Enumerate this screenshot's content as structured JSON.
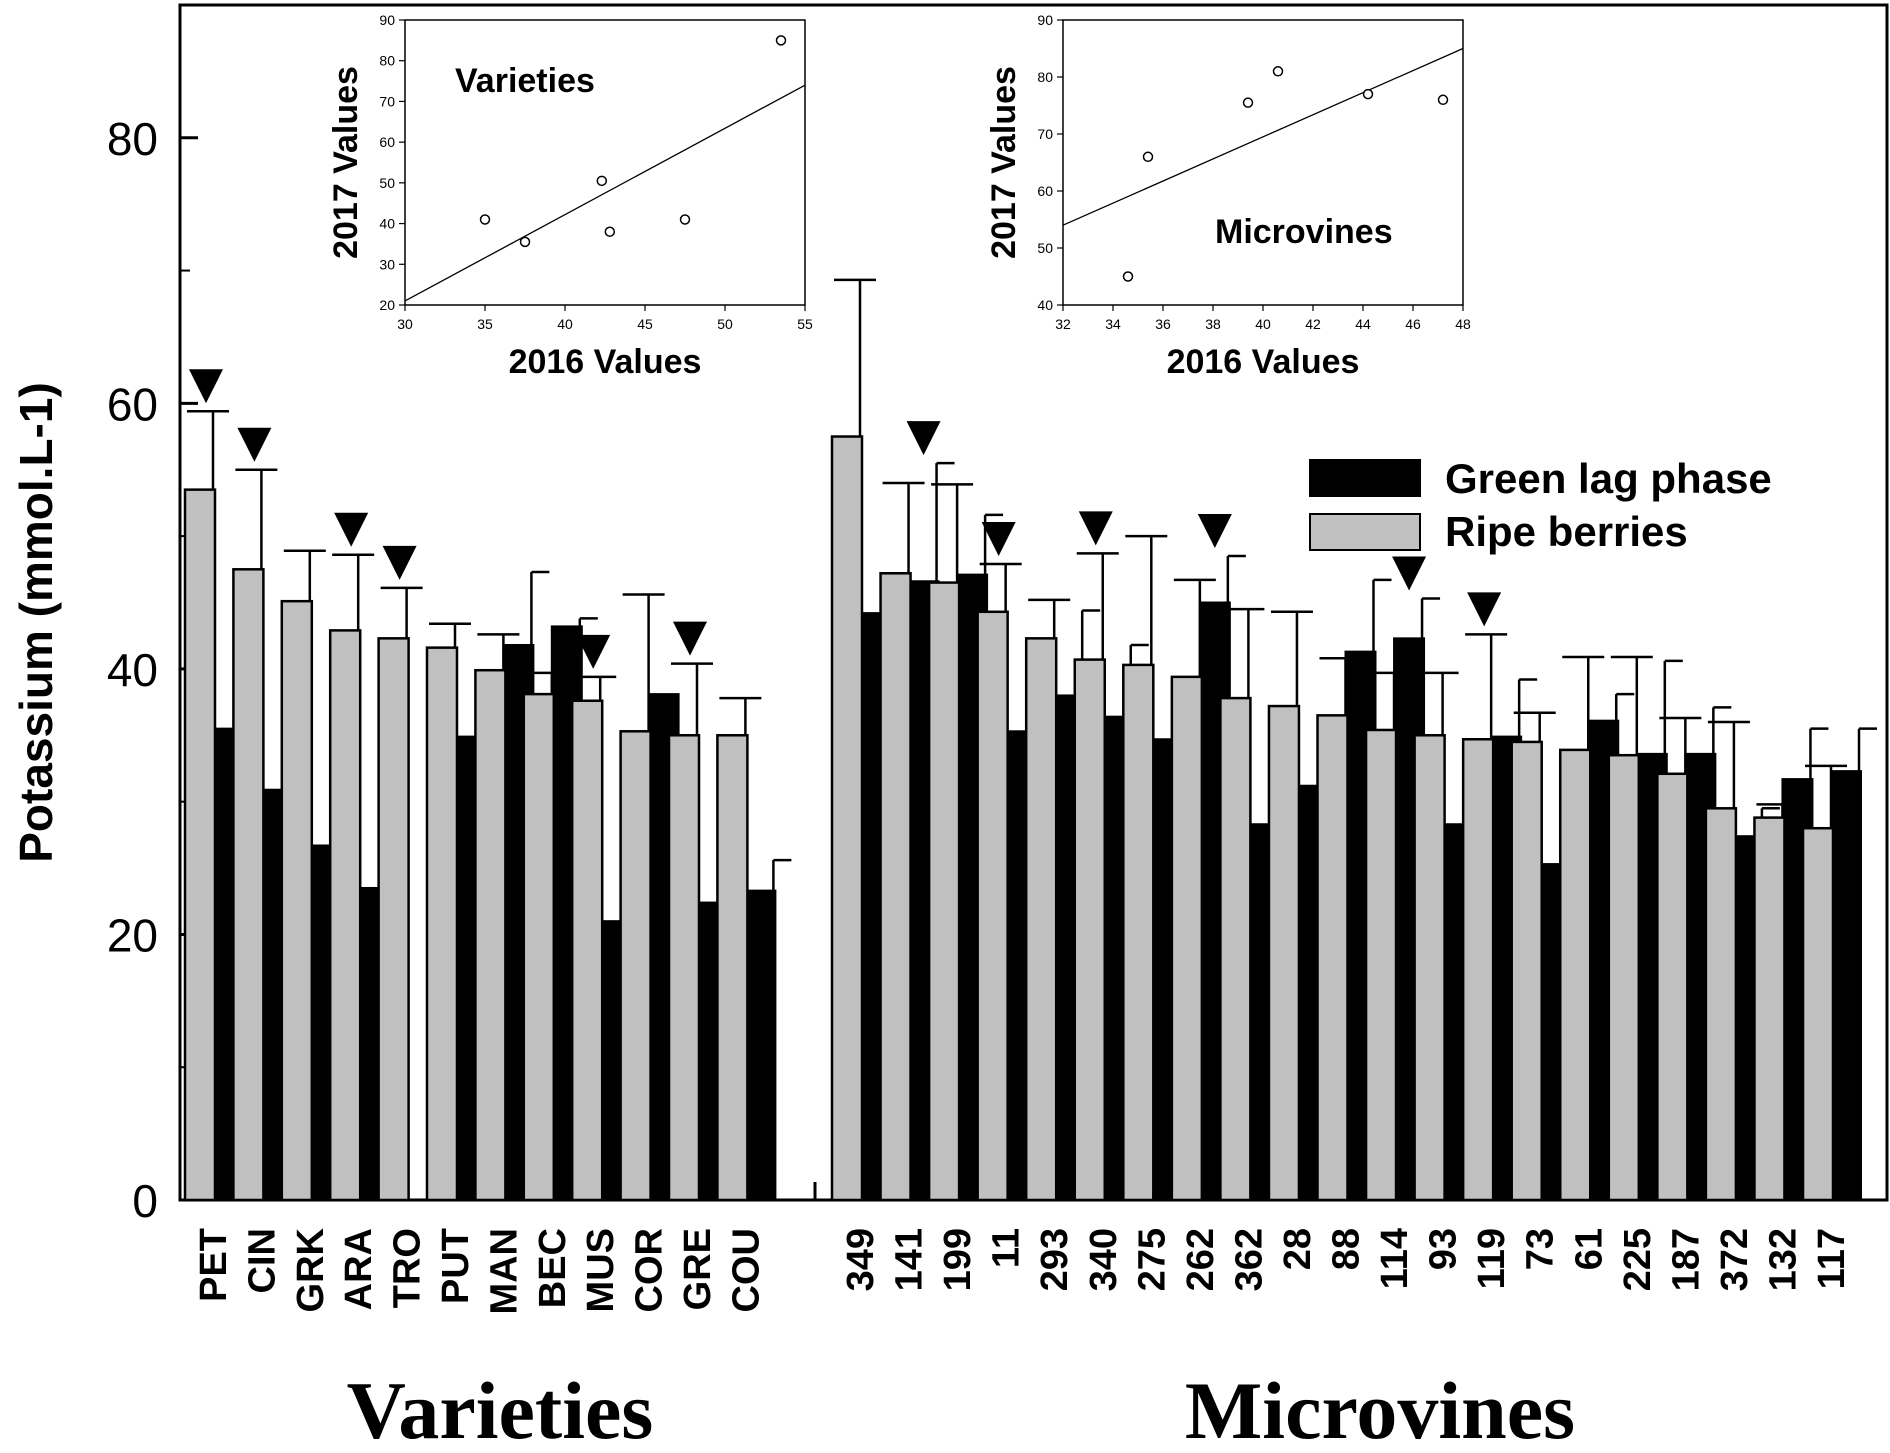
{
  "chart_data": {
    "type": "bar",
    "ylabel": "Potassium (mmol.L-1)",
    "ylim": [
      0,
      90
    ],
    "yticks": [
      0,
      20,
      40,
      60,
      80
    ],
    "colors": {
      "green_lag": "#000000",
      "ripe": "#c0c0c0",
      "axis": "#000000"
    },
    "legend": {
      "position": "top-right",
      "entries": [
        "Green lag phase",
        "Ripe berries"
      ]
    },
    "groups": [
      {
        "title": "Varieties",
        "categories": [
          "PET",
          "CIN",
          "GRK",
          "ARA",
          "TRO",
          "PUT",
          "MAN",
          "BEC",
          "MUS",
          "COR",
          "GRE",
          "COU"
        ],
        "ripe": [
          53.5,
          47.5,
          45.1,
          42.9,
          42.3,
          41.6,
          39.9,
          38.1,
          37.6,
          35.3,
          35.0,
          35.0
        ],
        "ripe_err": [
          5.9,
          7.5,
          3.8,
          5.7,
          3.8,
          1.8,
          2.7,
          1.6,
          1.8,
          10.3,
          5.4,
          2.8
        ],
        "green_lag": [
          35.5,
          30.9,
          26.7,
          23.5,
          0,
          34.9,
          41.8,
          43.2,
          21.0,
          38.1,
          22.4,
          23.3
        ],
        "green_lag_err": [
          5.5,
          1.8,
          2.2,
          4.3,
          0,
          4.6,
          5.5,
          0.6,
          0.7,
          0,
          1.5,
          2.3
        ],
        "significant": [
          true,
          true,
          false,
          true,
          true,
          false,
          false,
          false,
          true,
          false,
          true,
          false
        ]
      },
      {
        "title": "Microvines",
        "categories": [
          "349",
          "141",
          "199",
          "11",
          "293",
          "340",
          "275",
          "262",
          "362",
          "28",
          "88",
          "114",
          "93",
          "119",
          "73",
          "61",
          "225",
          "187",
          "372",
          "132",
          "117"
        ],
        "ripe": [
          57.5,
          47.2,
          46.5,
          44.3,
          42.3,
          40.7,
          40.3,
          39.4,
          37.8,
          37.2,
          36.5,
          35.4,
          35.0,
          34.7,
          34.5,
          33.9,
          33.5,
          32.1,
          29.5,
          28.8,
          28.0
        ],
        "ripe_err": [
          11.8,
          6.8,
          7.4,
          3.6,
          2.9,
          8.0,
          9.7,
          7.3,
          6.7,
          7.1,
          4.3,
          4.3,
          4.7,
          7.9,
          2.2,
          7.0,
          7.4,
          4.2,
          6.5,
          1.0,
          4.7
        ],
        "green_lag": [
          44.2,
          46.6,
          47.1,
          35.3,
          38.0,
          36.4,
          34.7,
          45.0,
          28.3,
          31.2,
          41.3,
          42.3,
          28.3,
          34.9,
          25.3,
          36.1,
          33.6,
          33.6,
          27.4,
          31.7,
          32.3
        ],
        "green_lag_err": [
          3.0,
          8.9,
          4.5,
          4.3,
          6.4,
          5.4,
          3.5,
          3.5,
          4.3,
          2.1,
          5.4,
          3.0,
          2.3,
          4.3,
          1.0,
          2.0,
          7.0,
          3.5,
          2.1,
          3.8,
          3.2
        ],
        "significant": [
          false,
          true,
          false,
          true,
          false,
          true,
          false,
          true,
          false,
          false,
          false,
          true,
          false,
          true,
          false,
          false,
          false,
          false,
          false,
          false,
          false
        ]
      }
    ],
    "insets": [
      {
        "label": "Varieties",
        "type": "scatter",
        "xlabel": "2016 Values",
        "ylabel": "2017 Values",
        "xlim": [
          30,
          55
        ],
        "ylim": [
          20,
          90
        ],
        "xticks": [
          30,
          35,
          40,
          45,
          50,
          55
        ],
        "yticks": [
          20,
          30,
          40,
          50,
          60,
          70,
          80,
          90
        ],
        "points": [
          [
            35.0,
            41.0
          ],
          [
            37.5,
            35.5
          ],
          [
            42.3,
            50.5
          ],
          [
            42.8,
            38.0
          ],
          [
            47.5,
            41.0
          ],
          [
            53.5,
            85.0
          ]
        ],
        "fit": [
          [
            30,
            21.0
          ],
          [
            55,
            74.0
          ]
        ]
      },
      {
        "label": "Microvines",
        "type": "scatter",
        "xlabel": "2016 Values",
        "ylabel": "2017 Values",
        "xlim": [
          32,
          48
        ],
        "ylim": [
          40,
          90
        ],
        "xticks": [
          32,
          34,
          36,
          38,
          40,
          42,
          44,
          46,
          48
        ],
        "yticks": [
          40,
          50,
          60,
          70,
          80,
          90
        ],
        "points": [
          [
            34.6,
            45.0
          ],
          [
            35.4,
            66.0
          ],
          [
            39.4,
            75.5
          ],
          [
            40.6,
            81.0
          ],
          [
            44.2,
            77.0
          ],
          [
            47.2,
            76.0
          ]
        ],
        "fit": [
          [
            32,
            54.0
          ],
          [
            48,
            85.0
          ]
        ]
      }
    ]
  }
}
